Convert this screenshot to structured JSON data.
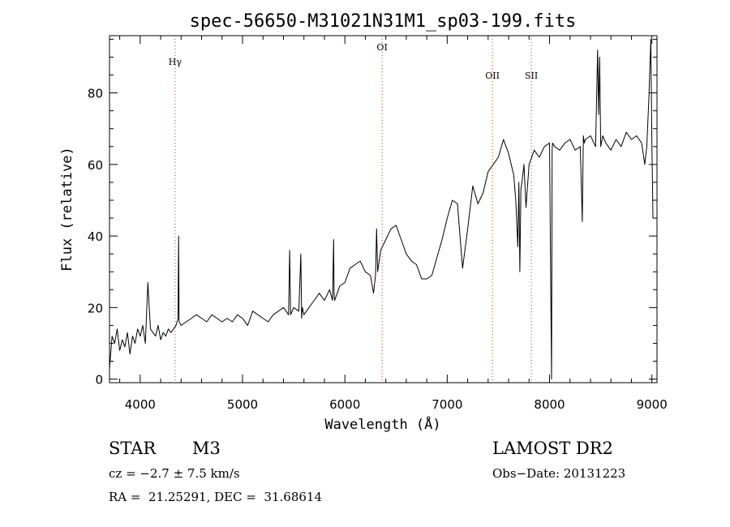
{
  "chart_data": {
    "type": "line",
    "title": "spec-56650-M31021N31M1_sp03-199.fits",
    "xlabel": "Wavelength (Å)",
    "ylabel": "Flux (relative)",
    "xlim": [
      3700,
      9050
    ],
    "ylim": [
      -1,
      96
    ],
    "x_ticks": [
      4000,
      5000,
      6000,
      7000,
      8000,
      9000
    ],
    "y_ticks": [
      0,
      20,
      40,
      60,
      80
    ],
    "x_minor_step": 200,
    "y_minor_step": 5,
    "line_color": "#000000",
    "marker_color": "#cc3333",
    "spectral_lines": [
      {
        "label": "Hγ",
        "wavelength": 4341
      },
      {
        "label": "OI",
        "wavelength": 6364
      },
      {
        "label": "OII",
        "wavelength": 7442
      },
      {
        "label": "SII",
        "wavelength": 7822
      }
    ],
    "series": [
      {
        "x": [
          3700,
          3725,
          3750,
          3775,
          3800,
          3825,
          3850,
          3875,
          3900,
          3925,
          3950,
          3975,
          4000,
          4025,
          4050,
          4075,
          4100,
          4125,
          4150,
          4175,
          4200,
          4225,
          4250,
          4275,
          4300,
          4325,
          4350,
          4370,
          4375,
          4380,
          4400,
          4450,
          4500,
          4550,
          4600,
          4650,
          4700,
          4750,
          4800,
          4850,
          4900,
          4950,
          5000,
          5050,
          5100,
          5150,
          5200,
          5250,
          5300,
          5350,
          5400,
          5450,
          5460,
          5470,
          5500,
          5550,
          5570,
          5578,
          5585,
          5600,
          5650,
          5700,
          5750,
          5800,
          5850,
          5880,
          5890,
          5895,
          5900,
          5950,
          6000,
          6050,
          6100,
          6150,
          6200,
          6250,
          6280,
          6300,
          6310,
          6320,
          6350,
          6400,
          6450,
          6500,
          6550,
          6600,
          6650,
          6700,
          6750,
          6800,
          6850,
          6900,
          6950,
          7000,
          7050,
          7100,
          7150,
          7200,
          7250,
          7300,
          7350,
          7400,
          7450,
          7500,
          7550,
          7600,
          7650,
          7670,
          7690,
          7700,
          7710,
          7720,
          7730,
          7750,
          7770,
          7800,
          7850,
          7900,
          7950,
          8000,
          8020,
          8025,
          8030,
          8050,
          8100,
          8150,
          8200,
          8250,
          8300,
          8320,
          8330,
          8340,
          8350,
          8400,
          8450,
          8470,
          8480,
          8490,
          8500,
          8520,
          8550,
          8600,
          8650,
          8700,
          8750,
          8800,
          8850,
          8900,
          8930,
          8950,
          8970,
          8990,
          9000,
          9010
        ],
        "y": [
          3,
          12,
          10,
          14,
          8,
          11,
          9,
          13,
          7,
          12,
          10,
          14,
          12,
          15,
          10,
          27,
          14,
          13,
          12,
          15,
          11,
          13,
          12,
          14,
          13,
          14,
          15,
          17,
          40,
          16,
          15,
          16,
          17,
          18,
          17,
          16,
          18,
          17,
          16,
          17,
          16,
          18,
          17,
          15,
          19,
          18,
          17,
          16,
          18,
          19,
          20,
          18,
          36,
          18,
          20,
          19,
          35,
          17,
          20,
          18,
          20,
          22,
          24,
          22,
          25,
          22,
          39,
          24,
          22,
          26,
          27,
          31,
          32,
          33,
          30,
          29,
          24,
          29,
          42,
          30,
          36,
          39,
          42,
          43,
          39,
          35,
          33,
          32,
          28,
          28,
          29,
          34,
          39,
          45,
          50,
          49,
          31,
          42,
          54,
          49,
          52,
          58,
          60,
          62,
          67,
          63,
          57,
          50,
          37,
          55,
          30,
          53,
          55,
          60,
          48,
          60,
          64,
          62,
          65,
          66,
          0,
          64,
          66,
          65,
          64,
          66,
          67,
          64,
          65,
          44,
          68,
          66,
          67,
          68,
          65,
          92,
          74,
          90,
          65,
          68,
          66,
          64,
          67,
          65,
          69,
          67,
          68,
          66,
          60,
          65,
          78,
          95,
          66,
          45
        ]
      }
    ]
  },
  "info": {
    "object_class": "STAR",
    "subclass": "M3",
    "survey": "LAMOST DR2",
    "redshift": "cz = −2.7 ± 7.5 km/s",
    "obs_date": "Obs−Date: 20131223",
    "coords": "RA =  21.25291, DEC =  31.68614"
  }
}
